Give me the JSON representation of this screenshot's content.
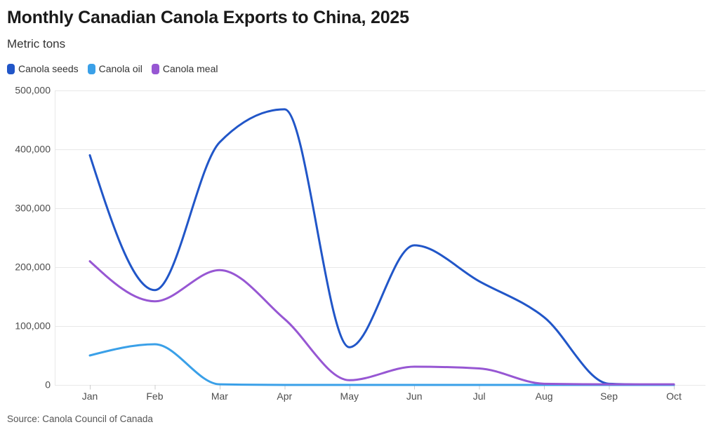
{
  "header": {
    "title": "Monthly Canadian Canola Exports to China, 2025",
    "subtitle": "Metric tons"
  },
  "legend": {
    "items": [
      {
        "label": "Canola seeds",
        "color": "#2156c8"
      },
      {
        "label": "Canola oil",
        "color": "#3aa0e8"
      },
      {
        "label": "Canola meal",
        "color": "#9757d3"
      }
    ]
  },
  "footer": {
    "source": "Source: Canola Council of Canada"
  },
  "chart_data": {
    "type": "line",
    "title": "Monthly Canadian Canola Exports to China, 2025",
    "ylabel": "Metric tons",
    "xlabel": "",
    "categories": [
      "Jan",
      "Feb",
      "Mar",
      "Apr",
      "May",
      "Jun",
      "Jul",
      "Aug",
      "Sep",
      "Oct"
    ],
    "series": [
      {
        "name": "Canola seeds",
        "color": "#2156c8",
        "values": [
          390000,
          161000,
          412000,
          468000,
          64000,
          237000,
          176000,
          115000,
          2000,
          0
        ]
      },
      {
        "name": "Canola oil",
        "color": "#3aa0e8",
        "values": [
          50000,
          69000,
          1000,
          0,
          0,
          0,
          0,
          0,
          0,
          0
        ]
      },
      {
        "name": "Canola meal",
        "color": "#9757d3",
        "values": [
          210000,
          142000,
          195000,
          112000,
          8000,
          31000,
          28000,
          2000,
          1000,
          1000
        ]
      }
    ],
    "ylim": [
      0,
      500000
    ],
    "yticks": [
      0,
      100000,
      200000,
      300000,
      400000,
      500000
    ],
    "grid": "horizontal",
    "curve": "monotone",
    "legend_position": "top-left",
    "source": "Source: Canola Council of Canada"
  }
}
